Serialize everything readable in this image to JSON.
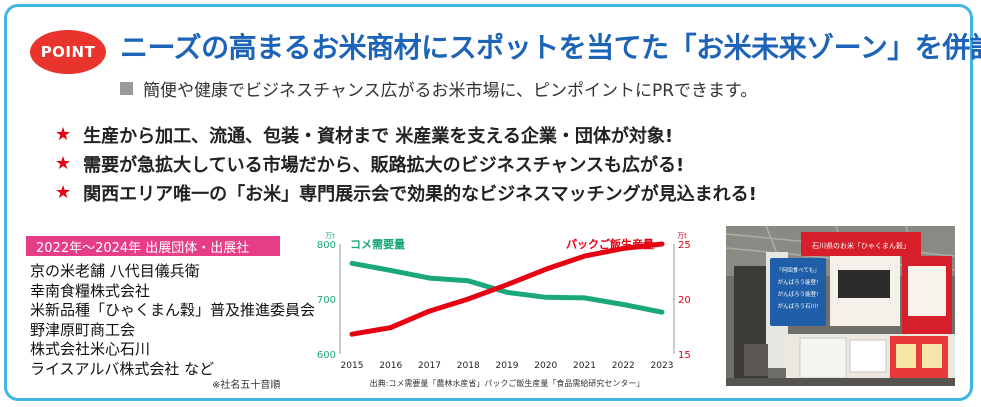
{
  "badge": "POINT",
  "headline": "ニーズの高まるお米商材にスポットを当てた「お米未来ゾーン」を併設!",
  "subline": "簡便や健康でビジネスチャンス広がるお米市場に、ピンポイントにPRできます。",
  "bullets": [
    "生産から加工、流通、包装・資材まで 米産業を支える企業・団体が対象!",
    "需要が急拡大している市場だから、販路拡大のビジネスチャンスも広がる!",
    "関西エリア唯一の「お米」専門展示会で効果的なビジネスマッチングが見込まれる!"
  ],
  "exhibitors": {
    "title": "2022年〜2024年 出展団体・出展社",
    "items": [
      "京の米老舗 八代目儀兵衛",
      "幸南食糧株式会社",
      "米新品種「ひゃくまん穀」普及推進委員会",
      "野津原町商工会",
      "株式会社米心石川",
      "ライスアルバ株式会社 など"
    ],
    "note": "※社名五十音順"
  },
  "chart_data": {
    "type": "line",
    "x": [
      2015,
      2016,
      2017,
      2018,
      2019,
      2020,
      2021,
      2022,
      2023
    ],
    "left_axis": {
      "unit": "万t",
      "ticks": [
        800,
        700,
        600
      ],
      "ylim": [
        600,
        800
      ]
    },
    "right_axis": {
      "unit": "万t",
      "ticks": [
        25,
        20,
        15
      ],
      "ylim": [
        15,
        25
      ]
    },
    "series": [
      {
        "name": "コメ需要量",
        "axis": "left",
        "color": "#1aa87a",
        "values": [
          765,
          752,
          738,
          733,
          712,
          703,
          702,
          690,
          676
        ]
      },
      {
        "name": "パックご飯生産量",
        "axis": "right",
        "color": "#e60012",
        "values": [
          16.8,
          17.4,
          18.9,
          20.0,
          21.3,
          22.7,
          23.9,
          24.6,
          25.0
        ]
      }
    ],
    "source": "出典:コメ需要量「農林水産省」パックご飯生産量「食品需給研究センター」"
  },
  "photo": {
    "sign_top": "石川県のお米「ひゃくまん穀」",
    "panel_lines": [
      "「何回食べても」",
      "がんばろう能登!",
      "がんばろう能登!",
      "がんばろう石川!"
    ]
  }
}
